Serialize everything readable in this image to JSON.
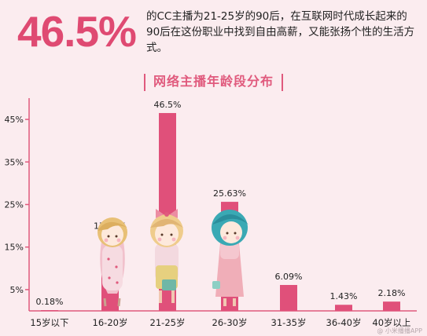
{
  "headline": {
    "stat": "46.5%",
    "text": "的CC主播为21-25岁的90后，在互联网时代成长起来的90后在这份职业中找到自由高薪，又能张扬个性的生活方式。"
  },
  "watermark": "@ 小米播播APP",
  "colors": {
    "bar": "#e0507a",
    "accent": "#df4a72",
    "axis": "#e05a7d",
    "background": "#fbecef"
  },
  "chart_data": {
    "type": "bar",
    "title": "网络主播年龄段分布",
    "categories": [
      "15岁以下",
      "16-20岁",
      "21-25岁",
      "26-30岁",
      "31-35岁",
      "36-40岁",
      "40岁以上"
    ],
    "values": [
      0.18,
      17.99,
      46.5,
      25.63,
      6.09,
      1.43,
      2.18
    ],
    "value_labels": [
      "0.18%",
      "17.99%",
      "46.5%",
      "25.63%",
      "6.09%",
      "1.43%",
      "2.18%"
    ],
    "y_ticks": [
      "5%",
      "15%",
      "25%",
      "35%",
      "45%"
    ],
    "y_tick_values": [
      5,
      15,
      25,
      35,
      45
    ],
    "ylim": [
      0,
      50
    ],
    "grid": false,
    "legend": "none"
  }
}
